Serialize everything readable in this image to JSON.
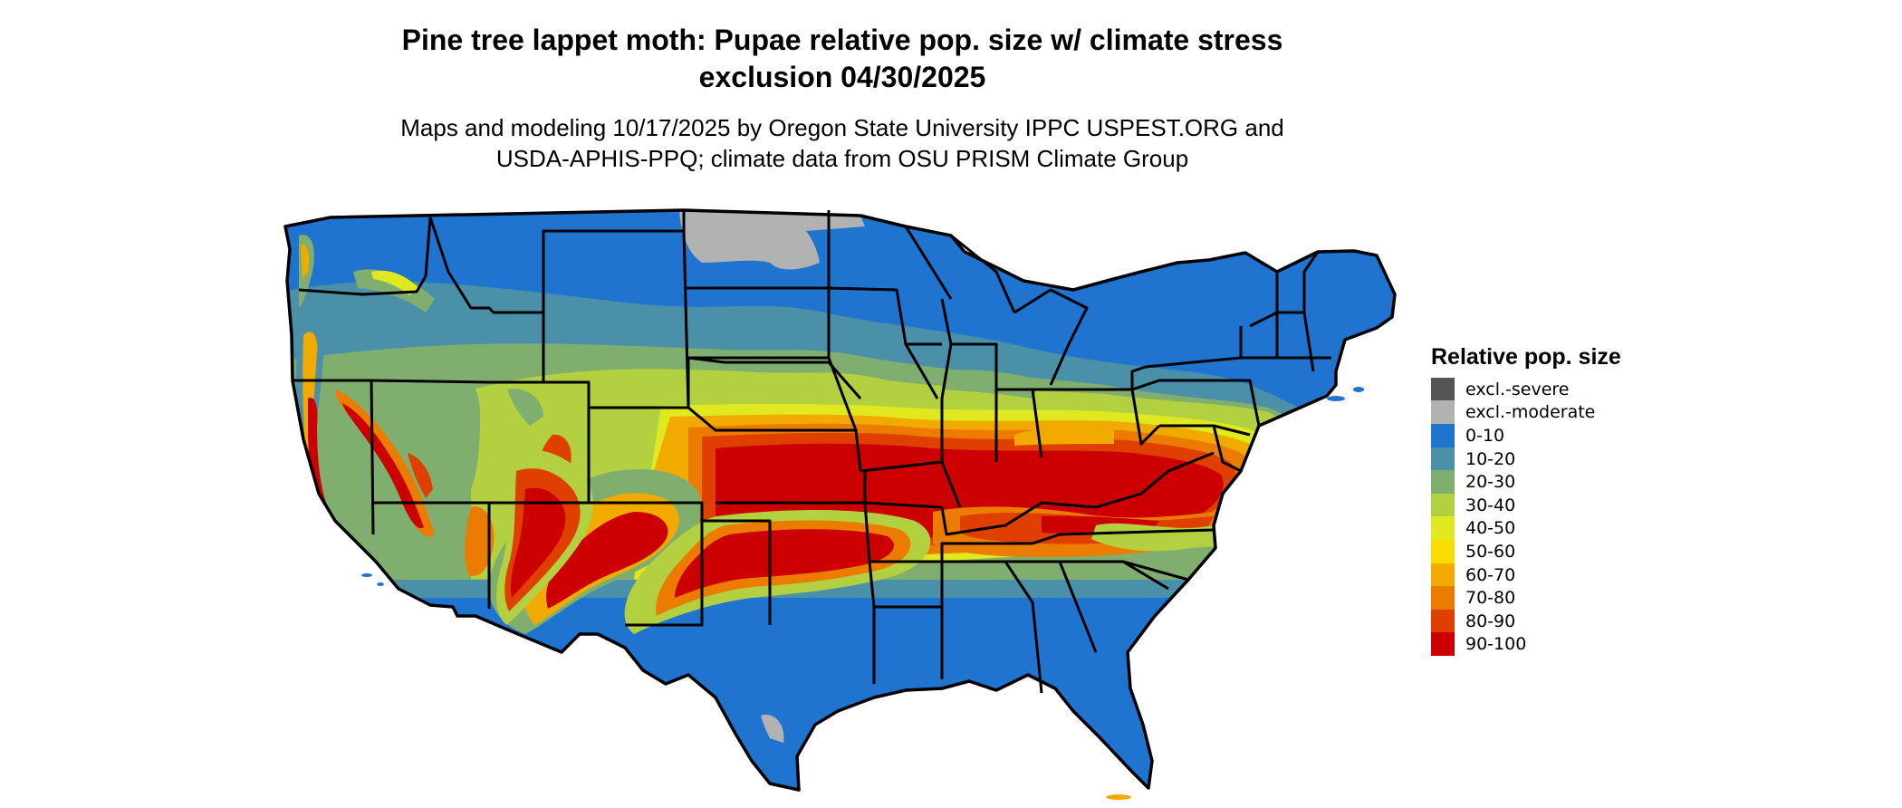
{
  "title_lines": [
    "Pine tree lappet moth: Pupae relative pop. size w/ climate stress",
    "exclusion 04/30/2025"
  ],
  "subtitle_lines": [
    "Maps and modeling 10/17/2025 by Oregon State University IPPC USPEST.ORG and",
    "USDA-APHIS-PPQ; climate data from OSU PRISM Climate Group"
  ],
  "legend": {
    "title": "Relative pop. size",
    "items": [
      {
        "label": "excl.-severe",
        "color": "#555555"
      },
      {
        "label": "excl.-moderate",
        "color": "#b2b2b2"
      },
      {
        "label": "0-10",
        "color": "#1f74d0"
      },
      {
        "label": "10-20",
        "color": "#4a90a8"
      },
      {
        "label": "20-30",
        "color": "#7fae6e"
      },
      {
        "label": "30-40",
        "color": "#b2d040"
      },
      {
        "label": "40-50",
        "color": "#e0e820"
      },
      {
        "label": "50-60",
        "color": "#f7dd00"
      },
      {
        "label": "60-70",
        "color": "#f0aa00"
      },
      {
        "label": "70-80",
        "color": "#ec7c00"
      },
      {
        "label": "80-90",
        "color": "#df4000"
      },
      {
        "label": "90-100",
        "color": "#cc0000"
      }
    ]
  }
}
